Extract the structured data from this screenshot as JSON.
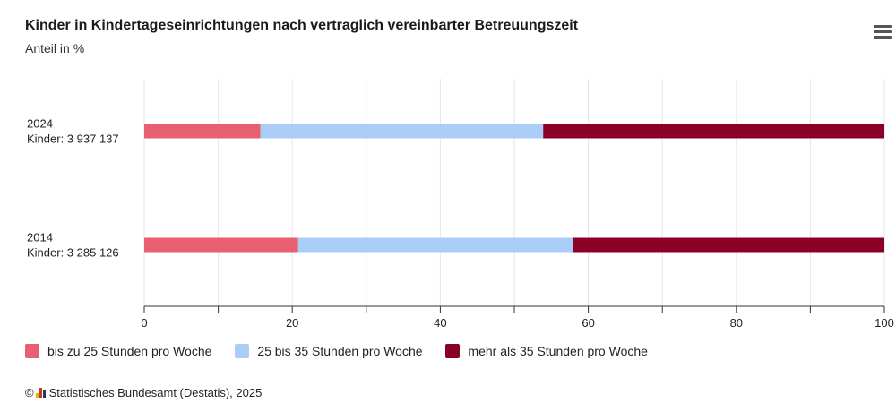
{
  "title": "Kinder in Kindertageseinrichtungen nach vertraglich vereinbarter Betreuungszeit",
  "subtitle": "Anteil in %",
  "menu_icon": "hamburger-menu-icon",
  "credit": {
    "copyright": "©",
    "text": "Statistisches Bundesamt (Destatis), 2025",
    "logo_colors": [
      "#e8b400",
      "#c0392b",
      "#1f3a5f"
    ]
  },
  "chart_data": {
    "type": "bar",
    "orientation": "horizontal",
    "stacked": true,
    "categories": [
      {
        "year": "2024",
        "kinder": "Kinder: 3 937 137"
      },
      {
        "year": "2014",
        "kinder": "Kinder: 3 285 126"
      }
    ],
    "series": [
      {
        "name": "bis zu 25 Stunden pro Woche",
        "color": "#e8606f",
        "values": [
          15.7,
          20.8
        ]
      },
      {
        "name": "25 bis 35 Stunden pro Woche",
        "color": "#a9cdf7",
        "values": [
          38.2,
          37.1
        ]
      },
      {
        "name": "mehr als 35 Stunden pro Woche",
        "color": "#8b0026",
        "values": [
          46.1,
          42.1
        ]
      }
    ],
    "xlim": [
      0,
      100
    ],
    "xticks": [
      "0",
      "20",
      "40",
      "60",
      "80",
      "100"
    ],
    "grid": true,
    "legend_position": "bottom-left"
  }
}
